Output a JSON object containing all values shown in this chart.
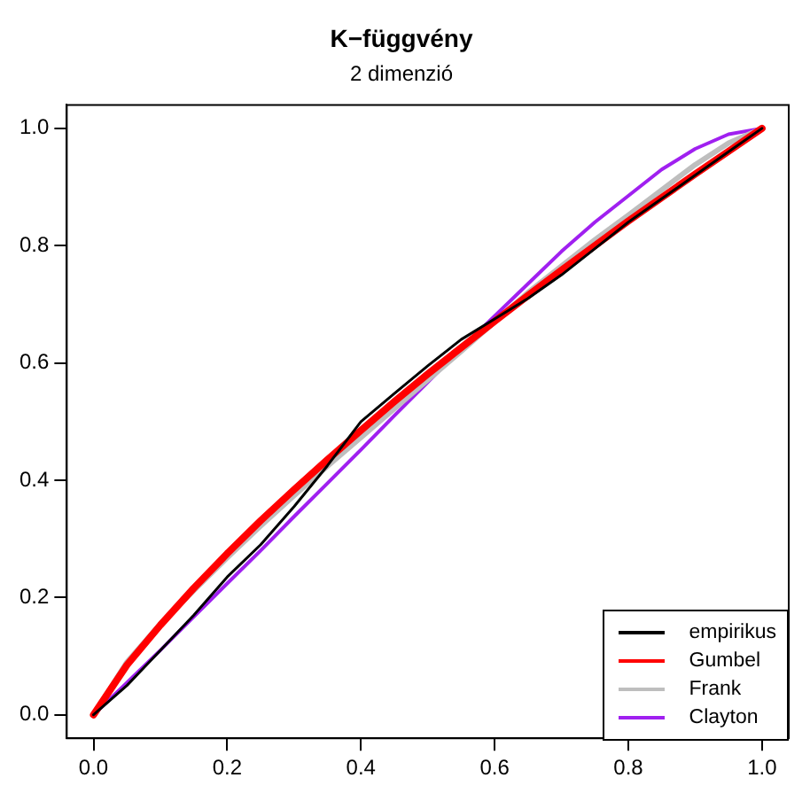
{
  "chart_data": {
    "type": "line",
    "title": "K−függvény",
    "subtitle": "2 dimenzió",
    "x": [
      0,
      0.05,
      0.1,
      0.15,
      0.2,
      0.25,
      0.3,
      0.35,
      0.4,
      0.45,
      0.5,
      0.55,
      0.6,
      0.65,
      0.7,
      0.75,
      0.8,
      0.85,
      0.9,
      0.95,
      1
    ],
    "series": [
      {
        "name": "empirikus",
        "color": "#000000",
        "values": [
          0,
          0.05,
          0.11,
          0.17,
          0.235,
          0.29,
          0.355,
          0.425,
          0.5,
          0.548,
          0.595,
          0.64,
          0.675,
          0.71,
          0.75,
          0.795,
          0.84,
          0.88,
          0.92,
          0.96,
          1
        ]
      },
      {
        "name": "Gumbel",
        "color": "#ff0000",
        "values": [
          0,
          0.085,
          0.153,
          0.216,
          0.275,
          0.331,
          0.384,
          0.435,
          0.485,
          0.534,
          0.581,
          0.626,
          0.671,
          0.715,
          0.758,
          0.8,
          0.842,
          0.882,
          0.922,
          0.961,
          1
        ]
      },
      {
        "name": "Frank",
        "color": "#bebebe",
        "values": [
          0,
          0.09,
          0.155,
          0.212,
          0.268,
          0.322,
          0.374,
          0.424,
          0.473,
          0.522,
          0.571,
          0.62,
          0.67,
          0.72,
          0.765,
          0.81,
          0.852,
          0.895,
          0.938,
          0.975,
          1
        ]
      },
      {
        "name": "Clayton",
        "color": "#a020f0",
        "values": [
          0,
          0.055,
          0.11,
          0.167,
          0.224,
          0.28,
          0.338,
          0.395,
          0.452,
          0.51,
          0.567,
          0.625,
          0.68,
          0.735,
          0.79,
          0.84,
          0.885,
          0.93,
          0.965,
          0.99,
          1
        ]
      }
    ],
    "xlim": [
      -0.04,
      1.04
    ],
    "ylim": [
      -0.04,
      1.04
    ],
    "xticks": [
      {
        "value": 0,
        "label": "0.0"
      },
      0.2,
      0.4,
      0.6,
      0.8,
      {
        "value": 1,
        "label": "1.0"
      }
    ],
    "yticks": [
      {
        "value": 0,
        "label": "0.0"
      },
      0.2,
      0.4,
      0.6,
      0.8,
      {
        "value": 1,
        "label": "1.0"
      }
    ],
    "grid": false,
    "legend": "bottom right",
    "marker": "none",
    "line_style": "solid"
  }
}
